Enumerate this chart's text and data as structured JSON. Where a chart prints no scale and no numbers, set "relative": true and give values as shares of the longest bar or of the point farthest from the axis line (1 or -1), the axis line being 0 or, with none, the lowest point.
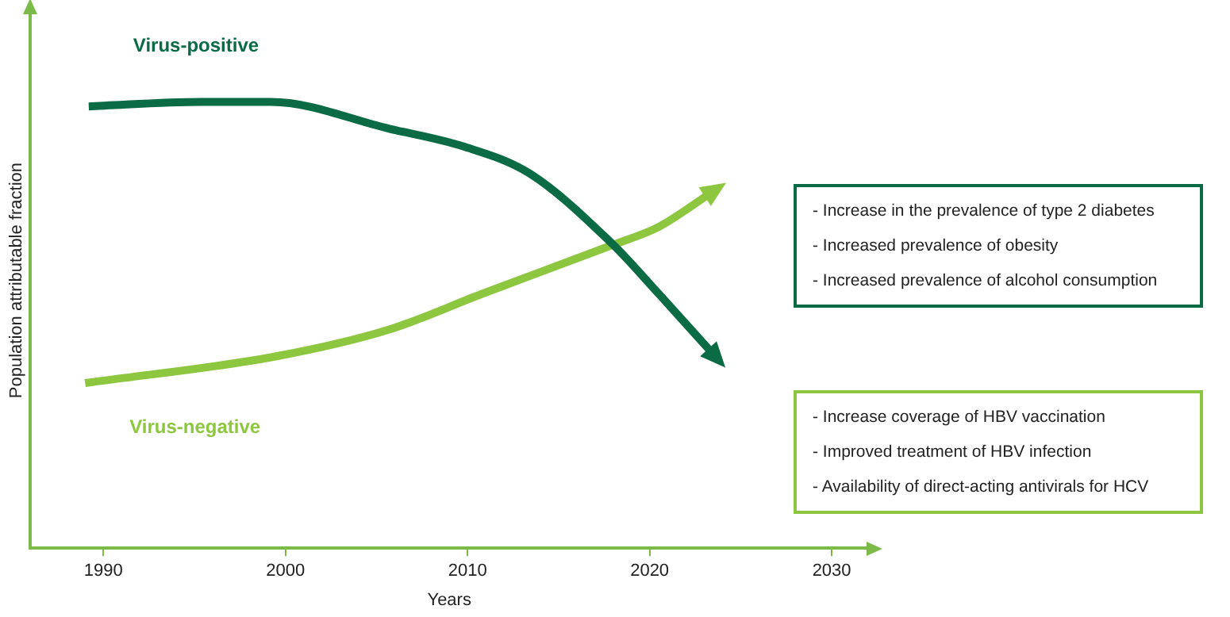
{
  "chart_data": {
    "type": "line",
    "relative": true,
    "xlabel": "Years",
    "ylabel": "Population attributable fraction",
    "xlim": [
      1986,
      2032
    ],
    "xticks": [
      1990,
      2000,
      2010,
      2020,
      2030
    ],
    "grid": false,
    "legend": false,
    "marker": "none",
    "line_style": "solid",
    "series": [
      {
        "name": "Virus-positive",
        "color": "#0b6b44",
        "x": [
          1989.2,
          1995.4,
          1999.2,
          2005.7,
          2009.8,
          2013.4,
          2018,
          2020.5,
          2023.6
        ],
        "values": [
          0.99,
          1,
          1,
          0.94,
          0.9,
          0.84,
          0.68,
          0.57,
          0.43
        ]
      },
      {
        "name": "Virus-negative",
        "color": "#8dc63f",
        "x": [
          1989,
          1999.5,
          2005.7,
          2010.8,
          2018,
          2020.5,
          2023.5
        ],
        "values": [
          0.37,
          0.43,
          0.49,
          0.57,
          0.68,
          0.72,
          0.8
        ]
      }
    ],
    "annotations": [
      "-  Increase in the prevalence of type 2 diabetes",
      "-  Increased prevalence of obesity",
      "-  Increased prevalence of alcohol consumption",
      "-  Increase coverage of HBV vaccination",
      "-  Improved treatment of HBV infection",
      "-  Availability of direct-acting antivirals for HCV"
    ]
  }
}
